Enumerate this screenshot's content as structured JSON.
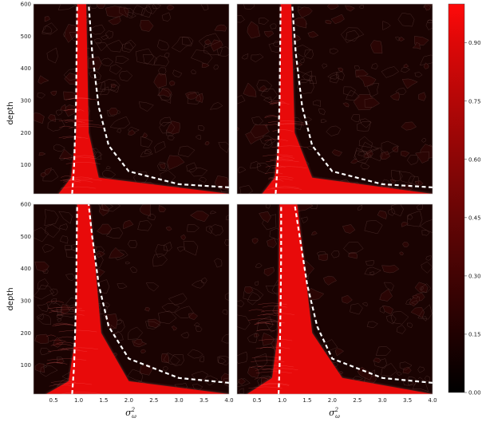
{
  "chart_data": [
    {
      "type": "heatmap",
      "panel": "top-left",
      "xlabel": "",
      "ylabel": "depth",
      "xlim": [
        0.1,
        4.0
      ],
      "ylim": [
        10,
        600
      ],
      "yticks": [
        100,
        200,
        300,
        400,
        500,
        600
      ],
      "xticks": [],
      "boundaries": {
        "left_dashed": {
          "x": [
            0.87,
            0.91,
            0.93,
            0.95,
            0.96,
            0.97
          ],
          "y": [
            10,
            100,
            200,
            300,
            450,
            600
          ]
        },
        "right_dashed": {
          "x": [
            4.0,
            3.0,
            2.0,
            1.6,
            1.4,
            1.27,
            1.2
          ],
          "y": [
            30,
            40,
            80,
            160,
            280,
            450,
            600
          ]
        }
      },
      "high_region": {
        "x_left": [
          0.6,
          0.85,
          0.95,
          0.97
        ],
        "x_right": [
          4.0,
          1.4,
          1.2,
          1.15
        ],
        "y": [
          10,
          60,
          200,
          600
        ]
      }
    },
    {
      "type": "heatmap",
      "panel": "top-right",
      "xlabel": "",
      "ylabel": "",
      "xlim": [
        0.1,
        4.0
      ],
      "ylim": [
        10,
        600
      ],
      "yticks": [],
      "xticks": [],
      "boundaries": {
        "left_dashed": {
          "x": [
            0.87,
            0.91,
            0.93,
            0.95,
            0.96,
            0.97
          ],
          "y": [
            10,
            100,
            200,
            300,
            450,
            600
          ]
        },
        "right_dashed": {
          "x": [
            4.0,
            3.0,
            2.0,
            1.6,
            1.4,
            1.27,
            1.2
          ],
          "y": [
            30,
            40,
            80,
            160,
            280,
            450,
            600
          ]
        }
      },
      "high_region": {
        "x_left": [
          0.6,
          0.85,
          0.95,
          0.97
        ],
        "x_right": [
          4.0,
          1.6,
          1.25,
          1.18
        ],
        "y": [
          10,
          60,
          200,
          600
        ]
      }
    },
    {
      "type": "heatmap",
      "panel": "bottom-left",
      "xlabel": "σ²ω",
      "ylabel": "depth",
      "xlim": [
        0.1,
        4.0
      ],
      "ylim": [
        10,
        600
      ],
      "yticks": [
        100,
        200,
        300,
        400,
        500,
        600
      ],
      "xticks": [
        0.5,
        1.0,
        1.5,
        2.0,
        2.5,
        3.0,
        3.5,
        4.0
      ],
      "boundaries": {
        "left_dashed": {
          "x": [
            0.87,
            0.91,
            0.93,
            0.95,
            0.96,
            0.97
          ],
          "y": [
            10,
            100,
            200,
            300,
            450,
            600
          ]
        },
        "right_dashed": {
          "x": [
            4.0,
            3.0,
            2.0,
            1.6,
            1.4,
            1.27,
            1.2
          ],
          "y": [
            45,
            60,
            120,
            220,
            350,
            500,
            600
          ]
        }
      },
      "high_region": {
        "x_left": [
          0.35,
          0.8,
          0.95,
          0.97
        ],
        "x_right": [
          4.0,
          2.0,
          1.45,
          1.22
        ],
        "y": [
          10,
          50,
          200,
          600
        ]
      }
    },
    {
      "type": "heatmap",
      "panel": "bottom-right",
      "xlabel": "σ²ω",
      "ylabel": "",
      "xlim": [
        0.1,
        4.0
      ],
      "ylim": [
        10,
        600
      ],
      "yticks": [],
      "xticks": [
        0.5,
        1.0,
        1.5,
        2.0,
        2.5,
        3.0,
        3.5,
        4.0
      ],
      "boundaries": {
        "left_dashed": {
          "x": [
            0.93,
            0.95,
            0.96,
            0.97,
            0.98,
            0.98
          ],
          "y": [
            10,
            100,
            200,
            300,
            450,
            600
          ]
        },
        "right_dashed": {
          "x": [
            4.0,
            3.0,
            2.0,
            1.7,
            1.5,
            1.35,
            1.25
          ],
          "y": [
            45,
            60,
            120,
            220,
            350,
            500,
            600
          ]
        }
      },
      "high_region": {
        "x_left": [
          0.3,
          0.8,
          0.92,
          0.95
        ],
        "x_right": [
          4.0,
          2.2,
          1.6,
          1.3
        ],
        "y": [
          10,
          60,
          200,
          600
        ]
      }
    }
  ],
  "colorbar": {
    "ticks": [
      "0.90",
      "0.75",
      "0.60",
      "0.45",
      "0.30",
      "0.15",
      "0.00"
    ],
    "tick_values": [
      0.9,
      0.75,
      0.6,
      0.45,
      0.3,
      0.15,
      0.0
    ],
    "range": [
      0.0,
      1.0
    ],
    "color_low": "#000000",
    "color_high": "#ff0000"
  },
  "colors": {
    "background_dark": "#1a0302",
    "heat_red": "#e80a0a",
    "edge_glow": "#8a3a3a",
    "dashed": "#ffffff"
  },
  "labels": {
    "depth_label": "depth",
    "x_label_symbol": "σ",
    "x_label_sup": "2",
    "x_label_sub": "ω"
  }
}
